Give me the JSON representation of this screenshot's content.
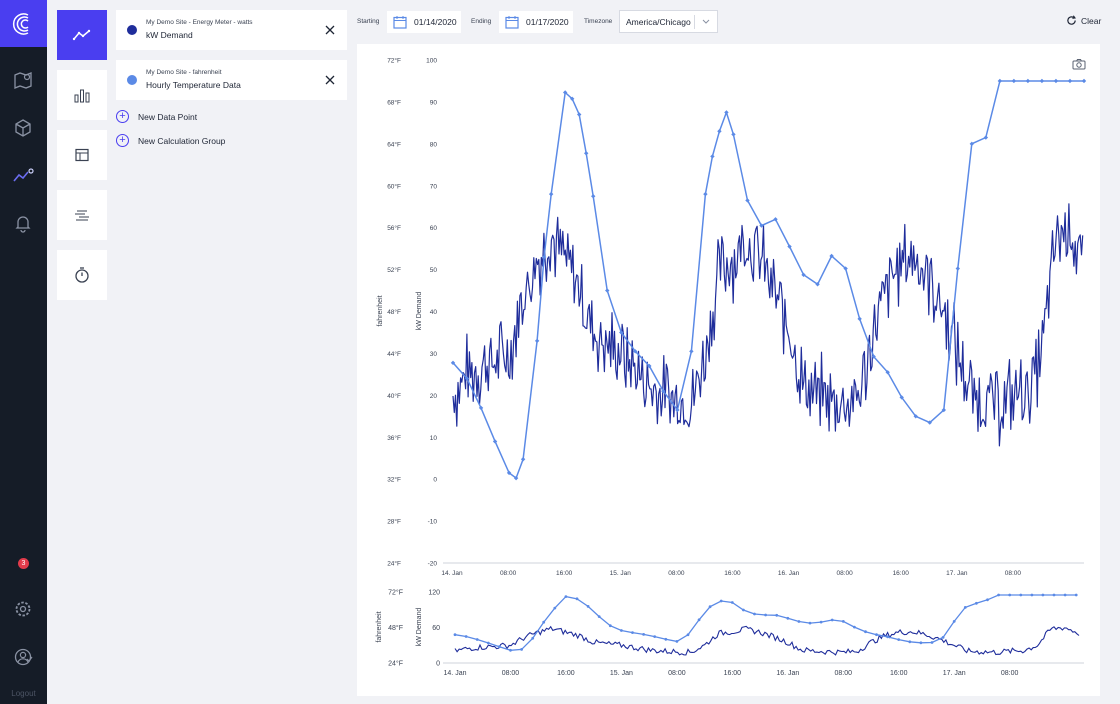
{
  "app": {
    "logout_label": "Logout",
    "alert_count": "3"
  },
  "data_points": [
    {
      "subtitle": "My Demo Site - Energy Meter - watts",
      "title": "kW Demand",
      "color": "#1f2d9b"
    },
    {
      "subtitle": "My Demo Site - fahrenheit",
      "title": "Hourly Temperature Data",
      "color": "#5b8ae6"
    }
  ],
  "actions": {
    "new_data_point": "New Data Point",
    "new_calculation_group": "New Calculation Group"
  },
  "toolbar": {
    "starting_label": "Starting",
    "starting_value": "01/14/2020",
    "ending_label": "Ending",
    "ending_value": "01/17/2020",
    "timezone_label": "Timezone",
    "timezone_value": "America/Chicago",
    "clear_label": "Clear"
  },
  "chart_data": [
    {
      "type": "line",
      "x_tick_labels": [
        "14. Jan",
        "08:00",
        "16:00",
        "15. Jan",
        "08:00",
        "16:00",
        "16. Jan",
        "08:00",
        "16:00",
        "17. Jan",
        "08:00"
      ],
      "y_left_label": "fahrenheit",
      "y_left_ticks": [
        "72°F",
        "68°F",
        "64°F",
        "60°F",
        "56°F",
        "52°F",
        "48°F",
        "44°F",
        "40°F",
        "36°F",
        "32°F",
        "28°F",
        "24°F"
      ],
      "y_right_label": "kW Demand",
      "y_right_ticks": [
        "100",
        "90",
        "80",
        "70",
        "60",
        "50",
        "40",
        "30",
        "20",
        "10",
        "0",
        "-10",
        "-20"
      ],
      "series": [
        {
          "name": "kW Demand",
          "color": "#1f2d9b",
          "axis": "kW Demand",
          "x_hours": [
            0,
            2,
            4,
            6,
            8,
            10,
            12,
            14,
            16,
            18,
            20,
            22,
            24,
            26,
            28,
            30,
            32,
            34,
            36,
            38,
            40,
            42,
            44,
            46,
            48,
            50,
            52,
            54,
            56,
            58,
            60,
            62,
            64,
            66,
            68,
            70,
            72,
            74,
            76,
            78,
            80,
            82,
            84,
            86,
            88,
            90
          ],
          "values": [
            20,
            25,
            27,
            28,
            30,
            43,
            52,
            58,
            52,
            46,
            35,
            32,
            30,
            26,
            22,
            20,
            19,
            18,
            30,
            50,
            53,
            57,
            52,
            44,
            35,
            22,
            20,
            19,
            18,
            20,
            35,
            46,
            52,
            53,
            48,
            40,
            30,
            20,
            19,
            18,
            20,
            21,
            30,
            58,
            60,
            50
          ]
        },
        {
          "name": "Hourly Temperature Data",
          "color": "#5b8ae6",
          "axis": "fahrenheit",
          "x_hours": [
            0,
            2,
            4,
            6,
            8,
            9,
            10,
            12,
            13,
            14,
            16,
            17,
            18,
            19,
            20,
            22,
            24,
            26,
            28,
            30,
            32,
            34,
            36,
            37,
            38,
            39,
            40,
            42,
            44,
            46,
            48,
            50,
            52,
            54,
            56,
            58,
            60,
            62,
            64,
            66,
            68,
            70,
            72,
            74,
            76,
            78,
            80,
            82,
            84,
            86,
            88,
            90
          ],
          "values": [
            43.1,
            41.6,
            38.8,
            35.6,
            32.6,
            32.1,
            33.9,
            45.2,
            53.2,
            59.2,
            68.9,
            68.3,
            66.8,
            63.1,
            59.0,
            50.0,
            46.0,
            44.2,
            42.8,
            40.4,
            38.6,
            44.2,
            59.2,
            62.8,
            65.2,
            67.0,
            64.9,
            58.6,
            56.2,
            56.8,
            54.2,
            51.5,
            50.6,
            53.3,
            52.1,
            47.3,
            43.7,
            42.2,
            39.8,
            38.0,
            37.4,
            38.6,
            52.1,
            64.0,
            64.6,
            70.0,
            70.0,
            70.0,
            70.0,
            70.0,
            70.0,
            70.0
          ]
        }
      ]
    },
    {
      "type": "line",
      "x_tick_labels": [
        "14. Jan",
        "08:00",
        "16:00",
        "15. Jan",
        "08:00",
        "16:00",
        "16. Jan",
        "08:00",
        "16:00",
        "17. Jan",
        "08:00"
      ],
      "y_left_label": "fahrenheit",
      "y_left_ticks": [
        "72°F",
        "48°F",
        "24°F"
      ],
      "y_right_label": "kW Demand",
      "y_right_ticks": [
        "120",
        "60",
        "0"
      ],
      "series": [
        {
          "name": "kW Demand",
          "color": "#1f2d9b",
          "axis": "kW Demand"
        },
        {
          "name": "Hourly Temperature Data",
          "color": "#5b8ae6",
          "axis": "fahrenheit"
        }
      ]
    }
  ]
}
